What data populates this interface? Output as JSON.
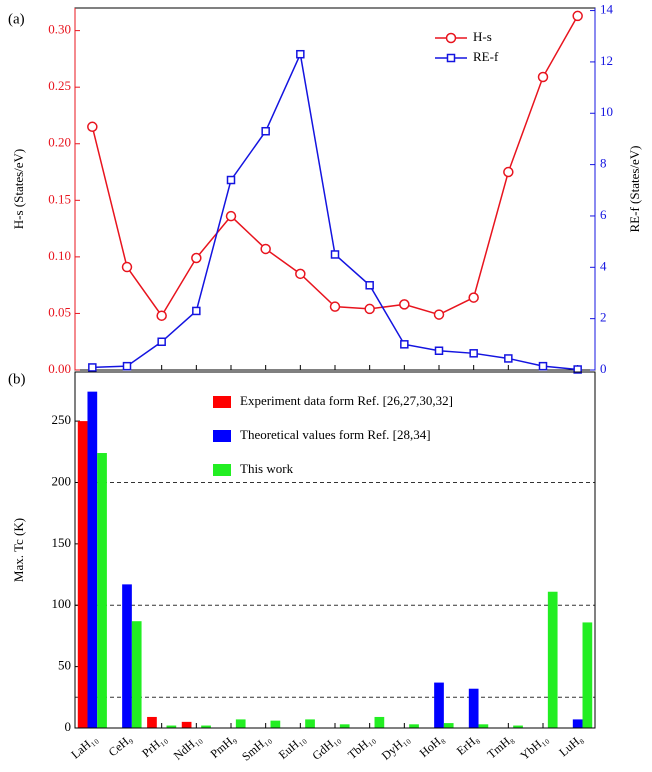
{
  "chart_data": [
    {
      "type": "line",
      "panel_label": "(a)",
      "ylabel": "H-s (States/eV)",
      "y2label": "RE-f (States/eV)",
      "ylim": [
        0,
        0.32
      ],
      "yticks": [
        {
          "value": 0,
          "label": "0.00"
        },
        0.05,
        {
          "value": 0.1,
          "label": "0.10"
        },
        0.15,
        {
          "value": 0.2,
          "label": "0.20"
        },
        0.25,
        {
          "value": 0.3,
          "label": "0.30"
        }
      ],
      "y2lim": [
        0,
        14.1
      ],
      "y2ticks": [
        0,
        2,
        4,
        6,
        8,
        10,
        12,
        14
      ],
      "legend": "upper right",
      "series": [
        {
          "name": "H-s",
          "color": "#e8141e",
          "marker": "circle",
          "axis": "y",
          "values": [
            0.215,
            0.091,
            0.048,
            0.099,
            0.136,
            0.107,
            0.085,
            0.056,
            0.054,
            0.058,
            0.049,
            0.064,
            0.175,
            0.259,
            0.313
          ]
        },
        {
          "name": "RE-f",
          "color": "#1414e0",
          "marker": "square",
          "axis": "y2",
          "values": [
            0.1,
            0.15,
            1.1,
            2.3,
            7.4,
            9.3,
            12.3,
            4.5,
            3.3,
            1.0,
            0.75,
            0.65,
            0.45,
            0.15,
            0.02
          ]
        }
      ]
    },
    {
      "type": "bar",
      "panel_label": "(b)",
      "ylabel": "Max. Tc (K)",
      "categories": [
        "LaH₁₀",
        "CeH₉",
        "PrH₁₀",
        "NdH₁₀",
        "PmH₉",
        "SmH₁₀",
        "EuH₁₀",
        "GdH₁₀",
        "TbH₁₀",
        "DyH₁₀",
        "HoH₈",
        "ErH₈",
        "TmH₈",
        "YbH₁₀",
        "LuH₈"
      ],
      "ylim": [
        0,
        290
      ],
      "yticks": [
        0,
        50,
        100,
        150,
        200,
        250
      ],
      "reference_lines": [
        25,
        100,
        200
      ],
      "legend": "upper center",
      "series": [
        {
          "name": "Experiment data form Ref. [26,27,30,32]",
          "color": "#ff0000",
          "values": [
            250,
            null,
            9,
            5,
            null,
            null,
            null,
            null,
            null,
            null,
            null,
            null,
            null,
            null,
            null
          ]
        },
        {
          "name": "Theoretical values form Ref. [28,34]",
          "color": "#0000ff",
          "values": [
            274,
            117,
            null,
            null,
            null,
            null,
            null,
            null,
            null,
            null,
            37,
            32,
            null,
            null,
            7
          ]
        },
        {
          "name": "This work",
          "color": "#22ee22",
          "values": [
            224,
            87,
            2,
            2,
            7,
            6,
            7,
            3,
            9,
            3,
            4,
            3,
            2,
            111,
            86
          ]
        }
      ]
    }
  ]
}
